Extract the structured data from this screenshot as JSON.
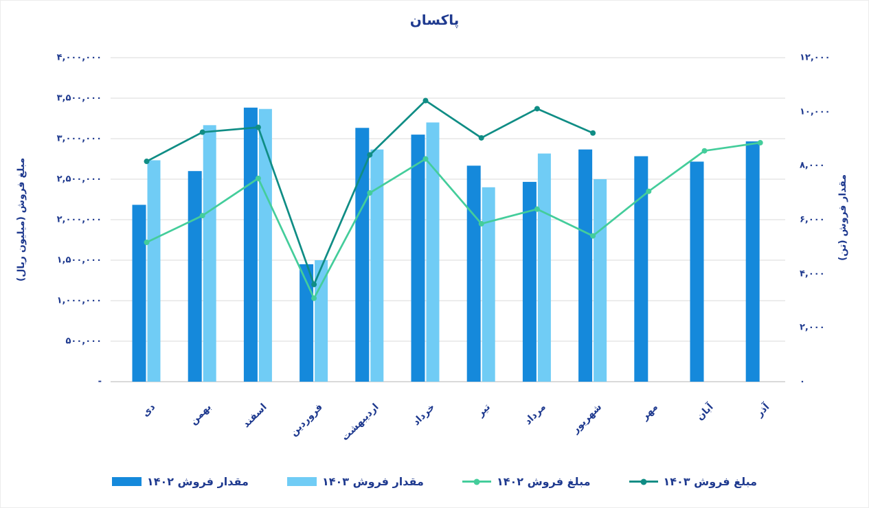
{
  "title": "پاکسان",
  "palette": {
    "text_navy": "#1F3A8F",
    "grid_gray": "#D9D9D9",
    "background": "#FFFFFF",
    "bar_1402": "#1589DB",
    "bar_1403": "#70CCF5",
    "line_1402": "#44CD9B",
    "line_1403": "#108D85"
  },
  "left_axis": {
    "title": "مبلغ فروش (میلیون ریال)",
    "ticks": [
      "۴,۰۰۰,۰۰۰",
      "۳,۵۰۰,۰۰۰",
      "۳,۰۰۰,۰۰۰",
      "۲,۵۰۰,۰۰۰",
      "۲,۰۰۰,۰۰۰",
      "۱,۵۰۰,۰۰۰",
      "۱,۰۰۰,۰۰۰",
      "۵۰۰,۰۰۰",
      "-"
    ]
  },
  "right_axis": {
    "title": "مقدار فروش (تن)",
    "ticks": [
      "۱۲,۰۰۰",
      "۱۰,۰۰۰",
      "۸,۰۰۰",
      "۶,۰۰۰",
      "۴,۰۰۰",
      "۲,۰۰۰",
      "۰"
    ]
  },
  "chart_data": {
    "type": "combo",
    "title": "پاکسان",
    "categories": [
      "دی",
      "بهمن",
      "اسفند",
      "فروردین",
      "اردیبهشت",
      "خرداد",
      "تیر",
      "مرداد",
      "شهریور",
      "مهر",
      "آبان",
      "آذر"
    ],
    "series": [
      {
        "name": "مقدار فروش ۱۴۰۲",
        "type": "bar",
        "axis": "right",
        "color": "#1589DB",
        "values": [
          6550,
          7800,
          10150,
          4350,
          9400,
          9150,
          8000,
          7400,
          8600,
          8350,
          8150,
          8900
        ]
      },
      {
        "name": "مقدار فروش ۱۴۰۳",
        "type": "bar",
        "axis": "right",
        "color": "#70CCF5",
        "values": [
          8200,
          9500,
          10100,
          4500,
          8600,
          9600,
          7200,
          8450,
          7500,
          null,
          null,
          null
        ]
      },
      {
        "name": "مبلغ فروش ۱۴۰۲",
        "type": "line",
        "axis": "left",
        "color": "#44CD9B",
        "values": [
          1720000,
          2050000,
          2510000,
          1030000,
          2330000,
          2750000,
          1950000,
          2130000,
          1800000,
          2350000,
          2850000,
          2950000
        ]
      },
      {
        "name": "مبلغ فروش ۱۴۰۳",
        "type": "line",
        "axis": "left",
        "color": "#108D85",
        "values": [
          2720000,
          3080000,
          3140000,
          1200000,
          2800000,
          3470000,
          3010000,
          3370000,
          3070000,
          null,
          null,
          null
        ]
      }
    ],
    "left_axis_label": "مبلغ فروش (میلیون ریال)",
    "right_axis_label": "مقدار فروش (تن)",
    "left_axis_range": [
      0,
      4000000
    ],
    "right_axis_range": [
      0,
      12000
    ],
    "grid": true,
    "legend_position": "bottom"
  }
}
